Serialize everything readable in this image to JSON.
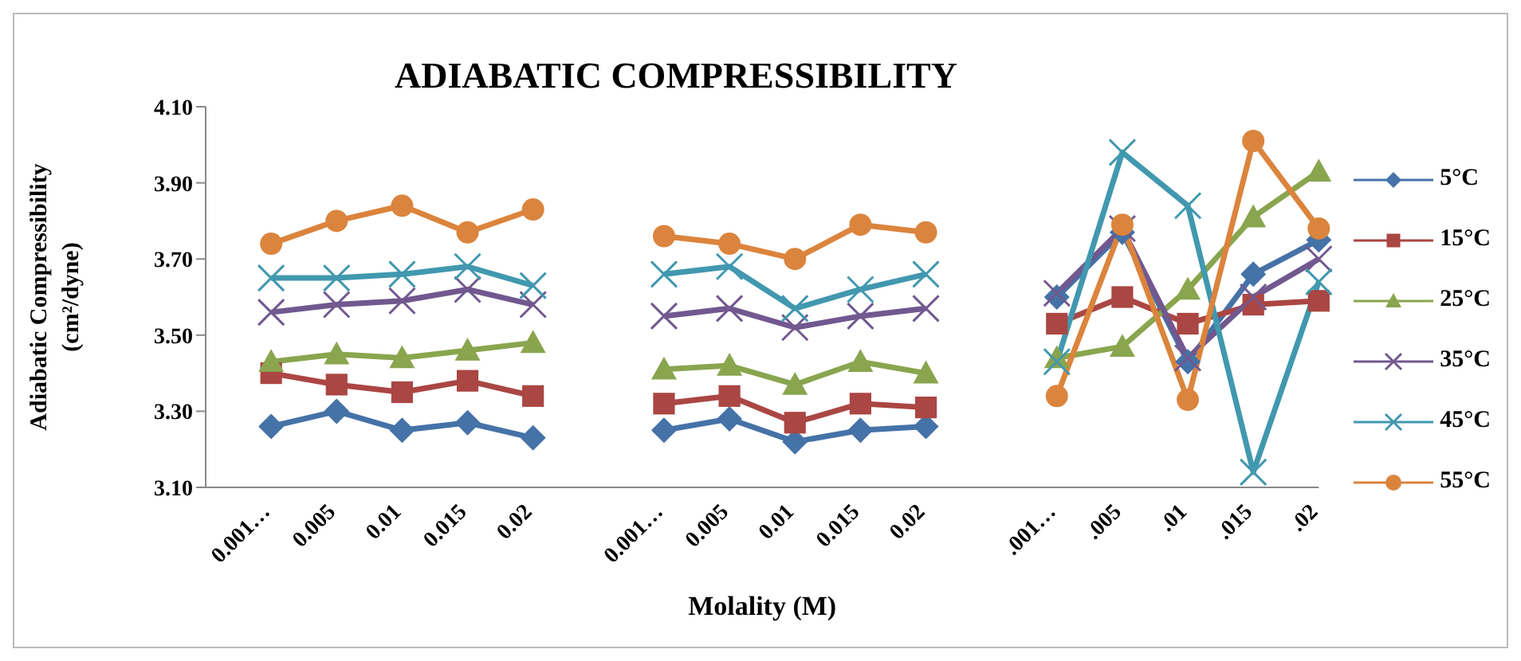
{
  "chart_data": {
    "type": "line",
    "title": "ADIABATIC COMPRESSIBILITY",
    "xlabel": "Molality (M)",
    "ylabel": "Adiabatic Compressibility (cm²/dyne)",
    "categories": [
      null,
      "0.001…",
      "0.005",
      "0.01",
      "0.015",
      "0.02",
      null,
      "0.001…",
      "0.005",
      "0.01",
      "0.015",
      "0.02",
      null,
      ".001…",
      ".005",
      ".01",
      ".015",
      ".02"
    ],
    "series": [
      {
        "name": "5°C",
        "color": "#4572a7",
        "marker": "diamond",
        "values": [
          null,
          3.26,
          3.3,
          3.25,
          3.27,
          3.23,
          null,
          3.25,
          3.28,
          3.22,
          3.25,
          3.26,
          null,
          3.6,
          3.77,
          3.43,
          3.66,
          3.75
        ]
      },
      {
        "name": "15°C",
        "color": "#aa4643",
        "marker": "square",
        "values": [
          null,
          3.4,
          3.37,
          3.35,
          3.38,
          3.34,
          null,
          3.32,
          3.34,
          3.27,
          3.32,
          3.31,
          null,
          3.53,
          3.6,
          3.53,
          3.58,
          3.59
        ]
      },
      {
        "name": "25°C",
        "color": "#89a54e",
        "marker": "triangle",
        "values": [
          null,
          3.43,
          3.45,
          3.44,
          3.46,
          3.48,
          null,
          3.41,
          3.42,
          3.37,
          3.43,
          3.4,
          null,
          3.44,
          3.47,
          3.62,
          3.81,
          3.93
        ]
      },
      {
        "name": "35°C",
        "color": "#71588f",
        "marker": "cross",
        "values": [
          null,
          3.56,
          3.58,
          3.59,
          3.62,
          3.58,
          null,
          3.55,
          3.57,
          3.52,
          3.55,
          3.57,
          null,
          3.61,
          3.78,
          3.44,
          3.6,
          3.7
        ]
      },
      {
        "name": "45°C",
        "color": "#4198af",
        "marker": "cross",
        "values": [
          null,
          3.65,
          3.65,
          3.66,
          3.68,
          3.63,
          null,
          3.66,
          3.68,
          3.57,
          3.62,
          3.66,
          null,
          3.43,
          3.98,
          3.84,
          3.14,
          3.64
        ]
      },
      {
        "name": "55°C",
        "color": "#db843d",
        "marker": "circle",
        "values": [
          null,
          3.74,
          3.8,
          3.84,
          3.77,
          3.83,
          null,
          3.76,
          3.74,
          3.7,
          3.79,
          3.77,
          null,
          3.34,
          3.79,
          3.33,
          4.01,
          3.78
        ]
      }
    ],
    "ylim": [
      3.1,
      4.1
    ],
    "yticks": [
      {
        "value": 3.1,
        "label": "3.10"
      },
      {
        "value": 3.3,
        "label": "3.30"
      },
      {
        "value": 3.5,
        "label": "3.50"
      },
      {
        "value": 3.7,
        "label": "3.70"
      },
      {
        "value": 3.9,
        "label": "3.90"
      },
      {
        "value": 4.1,
        "label": "4.10"
      }
    ],
    "grid": false,
    "legend": "right"
  }
}
